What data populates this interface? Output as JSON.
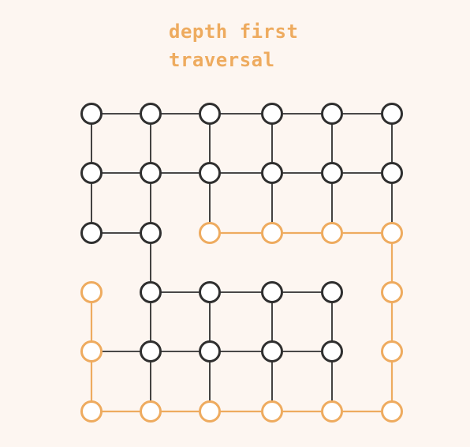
{
  "title": {
    "line1": "depth first",
    "line2": "traversal"
  },
  "colors": {
    "background": "#fdf6f1",
    "accent": "#eeab5f",
    "default_stroke": "#2f2f2f",
    "node_fill": "#ffffff"
  },
  "grid": {
    "rows": 6,
    "cols": 6,
    "missing_edges": [
      [
        "2,0",
        "3,0"
      ],
      [
        "3,0",
        "3,1"
      ],
      [
        "2,1",
        "2,2"
      ],
      [
        "2,3",
        "3,3"
      ],
      [
        "2,2",
        "3,2"
      ],
      [
        "2,4",
        "3,4"
      ],
      [
        "3,4",
        "3,5"
      ],
      [
        "4,4",
        "4,5"
      ]
    ],
    "visited_nodes": [
      "2,2",
      "2,3",
      "2,4",
      "2,5",
      "3,0",
      "3,5",
      "4,0",
      "4,5",
      "5,0",
      "5,1",
      "5,2",
      "5,3",
      "5,4",
      "5,5"
    ],
    "visited_edges": [
      [
        "2,2",
        "2,3"
      ],
      [
        "2,3",
        "2,4"
      ],
      [
        "2,4",
        "2,5"
      ],
      [
        "2,5",
        "3,5"
      ],
      [
        "3,5",
        "4,5"
      ],
      [
        "4,5",
        "5,5"
      ],
      [
        "5,5",
        "5,4"
      ],
      [
        "5,4",
        "5,3"
      ],
      [
        "5,3",
        "5,2"
      ],
      [
        "5,2",
        "5,1"
      ],
      [
        "5,1",
        "5,0"
      ],
      [
        "5,0",
        "4,0"
      ],
      [
        "4,0",
        "3,0"
      ]
    ]
  }
}
